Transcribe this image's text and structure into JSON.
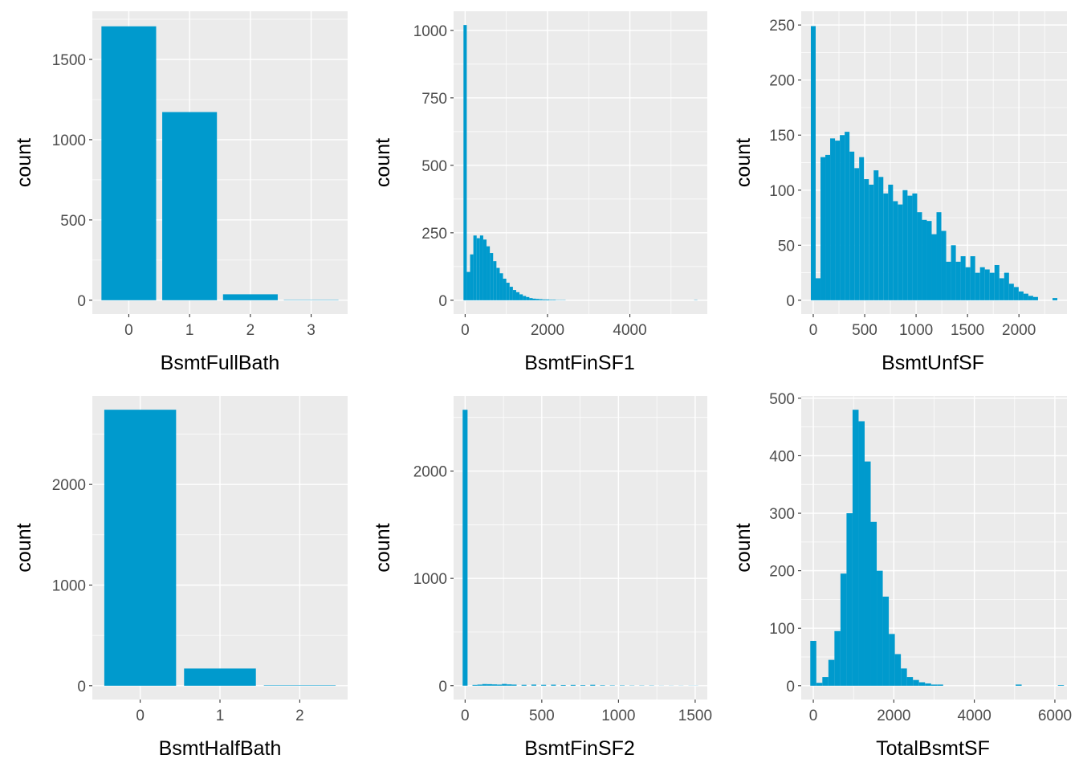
{
  "colors": {
    "panel": "#EBEBEB",
    "grid_major": "#FFFFFF",
    "bar": "#009ACD",
    "tick_text": "#4D4D4D",
    "title_text": "#000000"
  },
  "chart_data": [
    {
      "id": "p1",
      "type": "bar",
      "xlabel": "BsmtFullBath",
      "ylabel": "count",
      "categories": [
        "0",
        "1",
        "2",
        "3"
      ],
      "values": [
        1706,
        1172,
        37,
        2
      ],
      "ylim": [
        -86,
        1800
      ],
      "yticks": [
        0,
        500,
        1000,
        1500
      ],
      "grid": true
    },
    {
      "id": "p2",
      "type": "bar",
      "xlabel": "BsmtFinSF1",
      "ylabel": "count",
      "binwidth": 80,
      "x": [
        0,
        80,
        160,
        240,
        320,
        400,
        480,
        560,
        640,
        720,
        800,
        880,
        960,
        1040,
        1120,
        1200,
        1280,
        1360,
        1440,
        1520,
        1600,
        1680,
        1760,
        1840,
        1920,
        2000,
        2080,
        2160,
        2240,
        2320,
        2400,
        5600
      ],
      "values": [
        1020,
        105,
        170,
        240,
        230,
        240,
        225,
        200,
        175,
        145,
        120,
        100,
        80,
        65,
        50,
        38,
        30,
        22,
        16,
        12,
        8,
        6,
        5,
        4,
        3,
        3,
        2,
        2,
        1,
        1,
        1,
        1
      ],
      "xlim": [
        -280,
        5880
      ],
      "xticks": [
        0,
        2000,
        4000
      ],
      "ylim": [
        -51,
        1071
      ],
      "yticks": [
        0,
        250,
        500,
        750,
        1000
      ],
      "grid": true
    },
    {
      "id": "p3",
      "type": "bar",
      "xlabel": "BsmtUnfSF",
      "ylabel": "count",
      "binwidth": 47,
      "x": [
        0,
        47,
        94,
        141,
        188,
        235,
        282,
        329,
        376,
        423,
        470,
        517,
        564,
        611,
        658,
        705,
        752,
        799,
        846,
        893,
        940,
        987,
        1034,
        1081,
        1128,
        1175,
        1222,
        1269,
        1316,
        1363,
        1410,
        1457,
        1504,
        1551,
        1598,
        1645,
        1692,
        1739,
        1786,
        1833,
        1880,
        1927,
        1974,
        2021,
        2068,
        2115,
        2162,
        2350
      ],
      "values": [
        249,
        20,
        130,
        132,
        147,
        145,
        150,
        153,
        135,
        120,
        130,
        110,
        105,
        118,
        112,
        97,
        105,
        90,
        87,
        100,
        95,
        97,
        80,
        73,
        72,
        60,
        80,
        63,
        35,
        50,
        35,
        40,
        30,
        40,
        25,
        30,
        28,
        25,
        32,
        20,
        25,
        15,
        12,
        8,
        6,
        4,
        3,
        2
      ],
      "xlim": [
        -117,
        2467
      ],
      "xticks": [
        0,
        500,
        1000,
        1500,
        2000
      ],
      "ylim": [
        -12.5,
        262.5
      ],
      "yticks": [
        0,
        50,
        100,
        150,
        200,
        250
      ],
      "grid": true
    },
    {
      "id": "p4",
      "type": "bar",
      "xlabel": "BsmtHalfBath",
      "ylabel": "count",
      "categories": [
        "0",
        "1",
        "2"
      ],
      "values": [
        2742,
        171,
        4
      ],
      "ylim": [
        -137,
        2879
      ],
      "yticks": [
        0,
        1000,
        2000
      ],
      "grid": true
    },
    {
      "id": "p5",
      "type": "bar",
      "xlabel": "BsmtFinSF2",
      "ylabel": "count",
      "binwidth": 32,
      "x": [
        0,
        64,
        96,
        128,
        160,
        192,
        224,
        256,
        288,
        320,
        384,
        448,
        512,
        576,
        640,
        704,
        768,
        832,
        896,
        960,
        1024,
        1088,
        1152,
        1216,
        1280,
        1344,
        1408,
        1472,
        1504
      ],
      "values": [
        2571,
        7,
        10,
        15,
        14,
        12,
        10,
        16,
        12,
        10,
        8,
        10,
        8,
        9,
        6,
        7,
        5,
        8,
        4,
        3,
        3,
        2,
        2,
        2,
        1,
        1,
        1,
        1,
        1
      ],
      "xlim": [
        -75,
        1579
      ],
      "xticks": [
        0,
        500,
        1000,
        1500
      ],
      "ylim": [
        -129,
        2700
      ],
      "yticks": [
        0,
        1000,
        2000
      ],
      "grid": true
    },
    {
      "id": "p6",
      "type": "bar",
      "xlabel": "TotalBsmtSF",
      "ylabel": "count",
      "binwidth": 150,
      "x": [
        0,
        150,
        300,
        450,
        600,
        750,
        900,
        1050,
        1200,
        1350,
        1500,
        1650,
        1800,
        1950,
        2100,
        2250,
        2400,
        2550,
        2700,
        2850,
        3000,
        3150,
        5100,
        6150
      ],
      "values": [
        78,
        5,
        15,
        45,
        95,
        195,
        300,
        480,
        460,
        390,
        285,
        200,
        155,
        90,
        55,
        30,
        15,
        10,
        6,
        4,
        2,
        2,
        2,
        1
      ],
      "xlim": [
        -300,
        6300
      ],
      "xticks": [
        0,
        2000,
        4000,
        6000
      ],
      "ylim": [
        -24,
        504
      ],
      "yticks": [
        0,
        100,
        200,
        300,
        400,
        500
      ],
      "grid": true
    }
  ]
}
